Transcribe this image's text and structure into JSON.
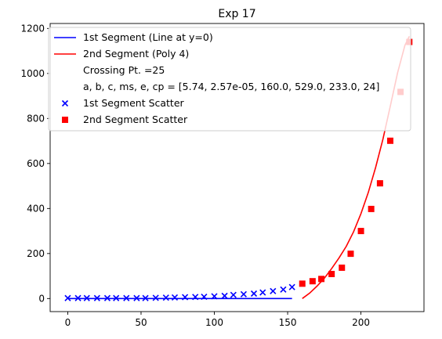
{
  "chart_data": {
    "type": "line",
    "title": "Exp 17",
    "xlabel": "",
    "ylabel": "",
    "xlim": [
      -12,
      243
    ],
    "ylim": [
      -58,
      1222
    ],
    "x_ticks": [
      0,
      50,
      100,
      150,
      200
    ],
    "y_ticks": [
      0,
      200,
      400,
      600,
      800,
      1000,
      1200
    ],
    "grid": false,
    "legend_position": "top-left",
    "series": [
      {
        "name": "1st Segment (Line at y=0)",
        "kind": "line",
        "color": "#0000ff",
        "x": [
          0,
          153
        ],
        "y": [
          0,
          0
        ]
      },
      {
        "name": "2nd Segment (Poly 4)",
        "kind": "line",
        "color": "#ff0000",
        "x": [
          160,
          165,
          170,
          175,
          180,
          185,
          190,
          195,
          200,
          205,
          210,
          215,
          220,
          225,
          230,
          233
        ],
        "y": [
          0,
          24,
          55,
          90,
          133,
          180,
          232,
          297,
          377,
          471,
          582,
          708,
          854,
          1003,
          1125,
          1165
        ]
      },
      {
        "name": "1st Segment Scatter",
        "kind": "scatter",
        "marker": "x",
        "color": "#0000ff",
        "x": [
          0,
          7,
          13,
          20,
          27,
          33,
          40,
          47,
          53,
          60,
          67,
          73,
          80,
          87,
          93,
          100,
          107,
          113,
          120,
          127,
          133,
          140,
          147,
          153
        ],
        "y": [
          2,
          2,
          2,
          2,
          2,
          2,
          2,
          2,
          2,
          3,
          4,
          5,
          6,
          7,
          8,
          10,
          12,
          16,
          19,
          22,
          27,
          33,
          40,
          51
        ]
      },
      {
        "name": "2nd Segment Scatter",
        "kind": "scatter",
        "marker": "s",
        "color": "#ff0000",
        "x": [
          160,
          167,
          173,
          180,
          187,
          193,
          200,
          207,
          213,
          220,
          227,
          233
        ],
        "y": [
          66,
          77,
          87,
          109,
          137,
          199,
          300,
          398,
          512,
          701,
          918,
          1140
        ]
      }
    ],
    "legend_extra": [
      "Crossing Pt. =25",
      "a, b, c, ms, e, cp = [5.74, 2.57e-05, 160.0, 529.0, 233.0, 24]"
    ]
  }
}
